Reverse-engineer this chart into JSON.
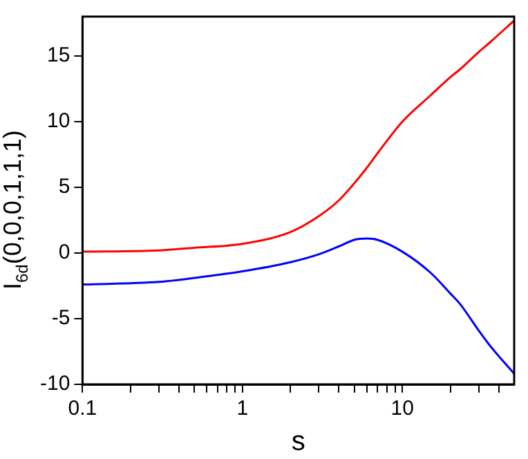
{
  "chart_data": {
    "type": "line",
    "xlabel": "s",
    "ylabel": "I$_{6d}$(0,0,0,1,1,1)",
    "log": "x",
    "grid": false,
    "legend": false,
    "marker": "none",
    "line_style": "solid",
    "xlim": [
      0.1,
      50
    ],
    "ylim": [
      -10,
      18
    ],
    "xticks": [
      0.1,
      {
        "value": 0.2,
        "label": null
      },
      {
        "value": 0.3,
        "label": null
      },
      {
        "value": 0.4,
        "label": null
      },
      {
        "value": 0.5,
        "label": null
      },
      {
        "value": 0.6,
        "label": null
      },
      {
        "value": 0.7,
        "label": null
      },
      {
        "value": 0.8,
        "label": null
      },
      {
        "value": 0.9,
        "label": null
      },
      1,
      {
        "value": 2,
        "label": null
      },
      {
        "value": 3,
        "label": null
      },
      {
        "value": 4,
        "label": null
      },
      {
        "value": 5,
        "label": null
      },
      {
        "value": 6,
        "label": null
      },
      {
        "value": 7,
        "label": null
      },
      {
        "value": 8,
        "label": null
      },
      {
        "value": 9,
        "label": null
      },
      10,
      {
        "value": 20,
        "label": null
      },
      {
        "value": 30,
        "label": null
      },
      {
        "value": 40,
        "label": null
      }
    ],
    "yticks": [
      -10,
      -5,
      0,
      5,
      10,
      15
    ],
    "x": [
      0.1,
      0.3,
      0.5,
      1,
      2,
      3,
      4,
      5,
      6,
      7,
      10,
      15,
      20,
      23,
      30,
      35,
      50
    ],
    "series": [
      {
        "color": "#ff0000",
        "values": [
          0.1,
          0.2,
          0.4,
          0.7,
          1.6,
          2.8,
          4.0,
          5.3,
          6.5,
          7.6,
          10.0,
          12.0,
          13.4,
          14.0,
          15.3,
          16.0,
          17.7
        ]
      },
      {
        "color": "#0000ff",
        "values": [
          -2.4,
          -2.2,
          -1.9,
          -1.4,
          -0.7,
          -0.1,
          0.5,
          1.0,
          1.1,
          1.0,
          0.1,
          -1.5,
          -3.1,
          -3.9,
          -5.9,
          -7.0,
          -9.2
        ]
      }
    ]
  }
}
